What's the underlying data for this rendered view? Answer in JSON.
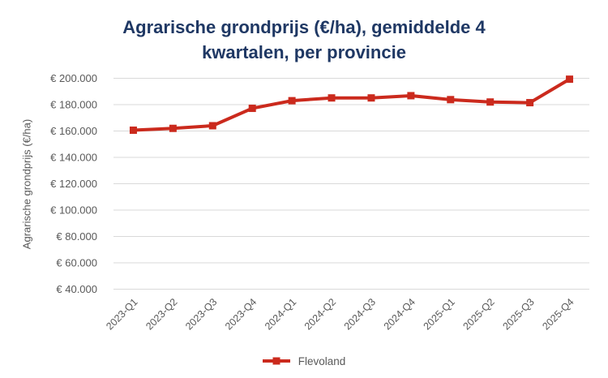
{
  "title_lines": [
    "Agrarische grondprijs (€/ha), gemiddelde 4",
    "kwartalen, per provincie"
  ],
  "colors": {
    "title": "#1f3864",
    "series": "#cb2a1d",
    "axis_text": "#595959",
    "gridline": "#d9d9d9"
  },
  "chart_data": {
    "type": "line",
    "title": "Agrarische grondprijs (€/ha), gemiddelde 4 kwartalen, per provincie",
    "ylabel": "Agrarische grondprijs (€/ha)",
    "xlabel": "",
    "categories": [
      "2023-Q1",
      "2023-Q2",
      "2023-Q3",
      "2023-Q4",
      "2024-Q1",
      "2024-Q2",
      "2024-Q3",
      "2024-Q4",
      "2025-Q1",
      "2025-Q2",
      "2025-Q3",
      "2025-Q4"
    ],
    "series": [
      {
        "name": "Flevoland",
        "color": "#cb2a1d",
        "marker": "square",
        "values": [
          160600,
          162000,
          164000,
          177200,
          183000,
          185100,
          185100,
          186800,
          183800,
          182000,
          181500,
          199300
        ]
      }
    ],
    "ylim": [
      40000,
      200000
    ],
    "ytick_step": 20000,
    "ytick_labels": [
      "€ 40.000",
      "€ 60.000",
      "€ 80.000",
      "€ 100.000",
      "€ 120.000",
      "€ 140.000",
      "€ 160.000",
      "€ 180.000",
      "€ 200.000"
    ],
    "grid": true,
    "legend_position": "bottom"
  }
}
